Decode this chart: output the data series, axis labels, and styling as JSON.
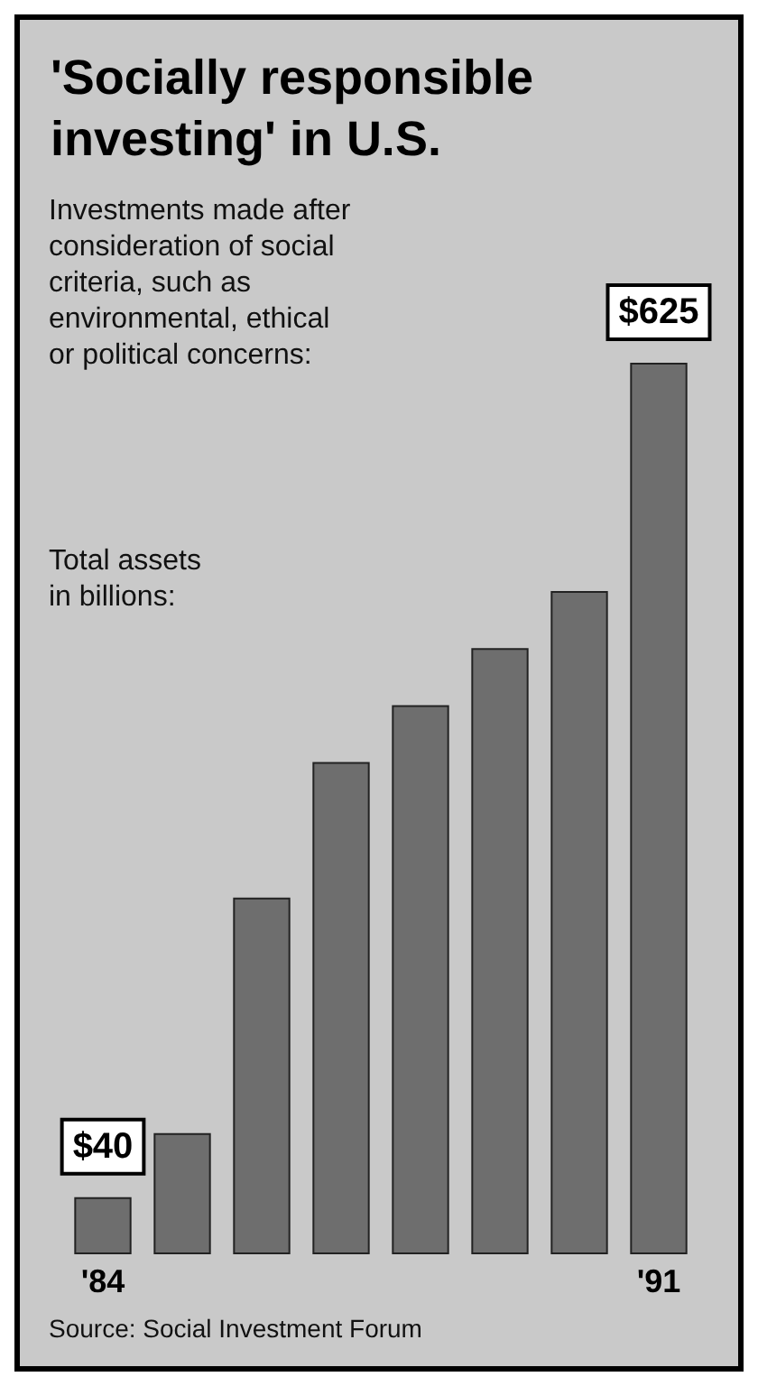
{
  "chart_data": {
    "type": "bar",
    "title": "'Socially responsible investing' in U.S.",
    "subtitle": "Investments made after consideration of social criteria, such as environmental, ethical or political concerns:",
    "ylabel": "Total assets in billions:",
    "categories": [
      "'84",
      null,
      null,
      null,
      null,
      null,
      null,
      "'91"
    ],
    "values": [
      40,
      85,
      250,
      345,
      385,
      425,
      465,
      625
    ],
    "value_labels": [
      "$40",
      null,
      null,
      null,
      null,
      null,
      null,
      "$625"
    ],
    "color": "#6e6e6e",
    "annotations": [
      "Source: Social Investment Forum"
    ]
  }
}
